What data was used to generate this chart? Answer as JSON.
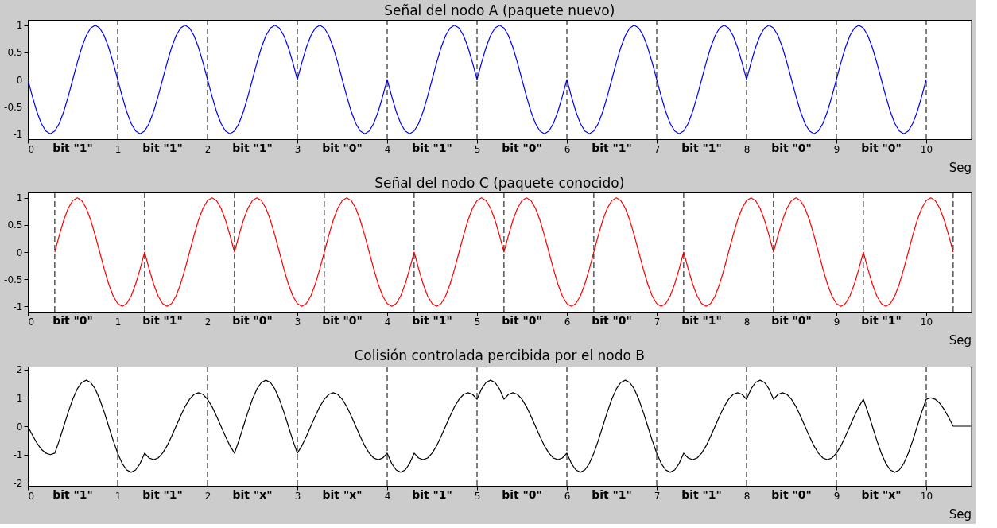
{
  "chart_data": [
    {
      "type": "line",
      "title": "Señal del nodo A (paquete nuevo)",
      "xlabel": "Seg",
      "x": [
        0,
        0.05,
        0.1,
        0.15,
        0.2,
        0.25,
        0.3,
        0.35,
        0.4,
        0.45,
        0.5,
        0.55,
        0.6,
        0.65,
        0.7,
        0.75,
        0.8,
        0.85,
        0.9,
        0.95,
        1,
        1.05,
        1.1,
        1.15,
        1.2,
        1.25,
        1.3,
        1.35,
        1.4,
        1.45,
        1.5,
        1.55,
        1.6,
        1.65,
        1.7,
        1.75,
        1.8,
        1.85,
        1.9,
        1.95,
        2,
        2.05,
        2.1,
        2.15,
        2.2,
        2.25,
        2.3,
        2.35,
        2.4,
        2.45,
        2.5,
        2.55,
        2.6,
        2.65,
        2.7,
        2.75,
        2.8,
        2.85,
        2.9,
        2.95,
        3,
        3.05,
        3.1,
        3.15,
        3.2,
        3.25,
        3.3,
        3.35,
        3.4,
        3.45,
        3.5,
        3.55,
        3.6,
        3.65,
        3.7,
        3.75,
        3.8,
        3.85,
        3.9,
        3.95,
        4,
        4.05,
        4.1,
        4.15,
        4.2,
        4.25,
        4.3,
        4.35,
        4.4,
        4.45,
        4.5,
        4.55,
        4.6,
        4.65,
        4.7,
        4.75,
        4.8,
        4.85,
        4.9,
        4.95,
        5,
        5.05,
        5.1,
        5.15,
        5.2,
        5.25,
        5.3,
        5.35,
        5.4,
        5.45,
        5.5,
        5.55,
        5.6,
        5.65,
        5.7,
        5.75,
        5.8,
        5.85,
        5.9,
        5.95,
        6,
        6.05,
        6.1,
        6.15,
        6.2,
        6.25,
        6.3,
        6.35,
        6.4,
        6.45,
        6.5,
        6.55,
        6.6,
        6.65,
        6.7,
        6.75,
        6.8,
        6.85,
        6.9,
        6.95,
        7,
        7.05,
        7.1,
        7.15,
        7.2,
        7.25,
        7.3,
        7.35,
        7.4,
        7.45,
        7.5,
        7.55,
        7.6,
        7.65,
        7.7,
        7.75,
        7.8,
        7.85,
        7.9,
        7.95,
        8,
        8.05,
        8.1,
        8.15,
        8.2,
        8.25,
        8.3,
        8.35,
        8.4,
        8.45,
        8.5,
        8.55,
        8.6,
        8.65,
        8.7,
        8.75,
        8.8,
        8.85,
        8.9,
        8.95,
        9,
        9.05,
        9.1,
        9.15,
        9.2,
        9.25,
        9.3,
        9.35,
        9.4,
        9.45,
        9.5,
        9.55,
        9.6,
        9.65,
        9.7,
        9.75,
        9.8,
        9.85,
        9.9,
        9.95,
        10
      ],
      "series": [
        {
          "color": "#0000ff",
          "values": [
            0,
            -0.31,
            -0.59,
            -0.81,
            -0.95,
            -1,
            -0.95,
            -0.81,
            -0.59,
            -0.31,
            0,
            0.31,
            0.59,
            0.81,
            0.95,
            1,
            0.95,
            0.81,
            0.59,
            0.31,
            0,
            -0.31,
            -0.59,
            -0.81,
            -0.95,
            -1,
            -0.95,
            -0.81,
            -0.59,
            -0.31,
            0,
            0.31,
            0.59,
            0.81,
            0.95,
            1,
            0.95,
            0.81,
            0.59,
            0.31,
            0,
            -0.31,
            -0.59,
            -0.81,
            -0.95,
            -1,
            -0.95,
            -0.81,
            -0.59,
            -0.31,
            0,
            0.31,
            0.59,
            0.81,
            0.95,
            1,
            0.95,
            0.81,
            0.59,
            0.31,
            0,
            0.31,
            0.59,
            0.81,
            0.95,
            1,
            0.95,
            0.81,
            0.59,
            0.31,
            0,
            -0.31,
            -0.59,
            -0.81,
            -0.95,
            -1,
            -0.95,
            -0.81,
            -0.59,
            -0.31,
            0,
            -0.31,
            -0.59,
            -0.81,
            -0.95,
            -1,
            -0.95,
            -0.81,
            -0.59,
            -0.31,
            0,
            0.31,
            0.59,
            0.81,
            0.95,
            1,
            0.95,
            0.81,
            0.59,
            0.31,
            0,
            0.31,
            0.59,
            0.81,
            0.95,
            1,
            0.95,
            0.81,
            0.59,
            0.31,
            0,
            -0.31,
            -0.59,
            -0.81,
            -0.95,
            -1,
            -0.95,
            -0.81,
            -0.59,
            -0.31,
            0,
            -0.31,
            -0.59,
            -0.81,
            -0.95,
            -1,
            -0.95,
            -0.81,
            -0.59,
            -0.31,
            0,
            0.31,
            0.59,
            0.81,
            0.95,
            1,
            0.95,
            0.81,
            0.59,
            0.31,
            0,
            -0.31,
            -0.59,
            -0.81,
            -0.95,
            -1,
            -0.95,
            -0.81,
            -0.59,
            -0.31,
            0,
            0.31,
            0.59,
            0.81,
            0.95,
            1,
            0.95,
            0.81,
            0.59,
            0.31,
            0,
            0.31,
            0.59,
            0.81,
            0.95,
            1,
            0.95,
            0.81,
            0.59,
            0.31,
            0,
            -0.31,
            -0.59,
            -0.81,
            -0.95,
            -1,
            -0.95,
            -0.81,
            -0.59,
            -0.31,
            0,
            0.31,
            0.59,
            0.81,
            0.95,
            1,
            0.95,
            0.81,
            0.59,
            0.31,
            0,
            -0.31,
            -0.59,
            -0.81,
            -0.95,
            -1,
            -0.95,
            -0.81,
            -0.59,
            -0.31,
            0
          ]
        }
      ],
      "xlim": [
        0,
        10.5
      ],
      "ylim": [
        -1.1,
        1.1
      ],
      "xticks": [
        0,
        1,
        2,
        3,
        4,
        5,
        6,
        7,
        8,
        9,
        10
      ],
      "yticks": [
        -1,
        -0.5,
        0,
        0.5,
        1
      ],
      "ref_lines": [
        {
          "axis": "x",
          "value": 1,
          "color": "#000000",
          "line_style": "dashed"
        },
        {
          "axis": "x",
          "value": 2,
          "color": "#000000",
          "line_style": "dashed"
        },
        {
          "axis": "x",
          "value": 3,
          "color": "#000000",
          "line_style": "dashed"
        },
        {
          "axis": "x",
          "value": 4,
          "color": "#000000",
          "line_style": "dashed"
        },
        {
          "axis": "x",
          "value": 5,
          "color": "#000000",
          "line_style": "dashed"
        },
        {
          "axis": "x",
          "value": 6,
          "color": "#000000",
          "line_style": "dashed"
        },
        {
          "axis": "x",
          "value": 7,
          "color": "#000000",
          "line_style": "dashed"
        },
        {
          "axis": "x",
          "value": 8,
          "color": "#000000",
          "line_style": "dashed"
        },
        {
          "axis": "x",
          "value": 9,
          "color": "#000000",
          "line_style": "dashed"
        },
        {
          "axis": "x",
          "value": 10,
          "color": "#000000",
          "line_style": "dashed"
        }
      ],
      "annotations": [
        "bit \"1\"",
        "bit \"1\"",
        "bit \"1\"",
        "bit \"0\"",
        "bit \"1\"",
        "bit \"0\"",
        "bit \"1\"",
        "bit \"1\"",
        "bit \"0\"",
        "bit \"0\""
      ]
    },
    {
      "type": "line",
      "title": "Señal del nodo C (paquete conocido)",
      "xlabel": "Seg",
      "x": [
        0.3,
        0.35,
        0.4,
        0.45,
        0.5,
        0.55,
        0.6,
        0.65,
        0.7,
        0.75,
        0.8,
        0.85,
        0.9,
        0.95,
        1,
        1.05,
        1.1,
        1.15,
        1.2,
        1.25,
        1.3,
        1.35,
        1.4,
        1.45,
        1.5,
        1.55,
        1.6,
        1.65,
        1.7,
        1.75,
        1.8,
        1.85,
        1.9,
        1.95,
        2,
        2.05,
        2.1,
        2.15,
        2.2,
        2.25,
        2.3,
        2.35,
        2.4,
        2.45,
        2.5,
        2.55,
        2.6,
        2.65,
        2.7,
        2.75,
        2.8,
        2.85,
        2.9,
        2.95,
        3,
        3.05,
        3.1,
        3.15,
        3.2,
        3.25,
        3.3,
        3.35,
        3.4,
        3.45,
        3.5,
        3.55,
        3.6,
        3.65,
        3.7,
        3.75,
        3.8,
        3.85,
        3.9,
        3.95,
        4,
        4.05,
        4.1,
        4.15,
        4.2,
        4.25,
        4.3,
        4.35,
        4.4,
        4.45,
        4.5,
        4.55,
        4.6,
        4.65,
        4.7,
        4.75,
        4.8,
        4.85,
        4.9,
        4.95,
        5,
        5.05,
        5.1,
        5.15,
        5.2,
        5.25,
        5.3,
        5.35,
        5.4,
        5.45,
        5.5,
        5.55,
        5.6,
        5.65,
        5.7,
        5.75,
        5.8,
        5.85,
        5.9,
        5.95,
        6,
        6.05,
        6.1,
        6.15,
        6.2,
        6.25,
        6.3,
        6.35,
        6.4,
        6.45,
        6.5,
        6.55,
        6.6,
        6.65,
        6.7,
        6.75,
        6.8,
        6.85,
        6.9,
        6.95,
        7,
        7.05,
        7.1,
        7.15,
        7.2,
        7.25,
        7.3,
        7.35,
        7.4,
        7.45,
        7.5,
        7.55,
        7.6,
        7.65,
        7.7,
        7.75,
        7.8,
        7.85,
        7.9,
        7.95,
        8,
        8.05,
        8.1,
        8.15,
        8.2,
        8.25,
        8.3,
        8.35,
        8.4,
        8.45,
        8.5,
        8.55,
        8.6,
        8.65,
        8.7,
        8.75,
        8.8,
        8.85,
        8.9,
        8.95,
        9,
        9.05,
        9.1,
        9.15,
        9.2,
        9.25,
        9.3,
        9.35,
        9.4,
        9.45,
        9.5,
        9.55,
        9.6,
        9.65,
        9.7,
        9.75,
        9.8,
        9.85,
        9.9,
        9.95,
        10,
        10.05,
        10.1,
        10.15,
        10.2,
        10.25,
        10.3
      ],
      "series": [
        {
          "color": "#ff0000",
          "values": [
            0,
            0.31,
            0.59,
            0.81,
            0.95,
            1,
            0.95,
            0.81,
            0.59,
            0.31,
            0,
            -0.31,
            -0.59,
            -0.81,
            -0.95,
            -1,
            -0.95,
            -0.81,
            -0.59,
            -0.31,
            0,
            -0.31,
            -0.59,
            -0.81,
            -0.95,
            -1,
            -0.95,
            -0.81,
            -0.59,
            -0.31,
            0,
            0.31,
            0.59,
            0.81,
            0.95,
            1,
            0.95,
            0.81,
            0.59,
            0.31,
            0,
            0.31,
            0.59,
            0.81,
            0.95,
            1,
            0.95,
            0.81,
            0.59,
            0.31,
            0,
            -0.31,
            -0.59,
            -0.81,
            -0.95,
            -1,
            -0.95,
            -0.81,
            -0.59,
            -0.31,
            0,
            0.31,
            0.59,
            0.81,
            0.95,
            1,
            0.95,
            0.81,
            0.59,
            0.31,
            0,
            -0.31,
            -0.59,
            -0.81,
            -0.95,
            -1,
            -0.95,
            -0.81,
            -0.59,
            -0.31,
            0,
            -0.31,
            -0.59,
            -0.81,
            -0.95,
            -1,
            -0.95,
            -0.81,
            -0.59,
            -0.31,
            0,
            0.31,
            0.59,
            0.81,
            0.95,
            1,
            0.95,
            0.81,
            0.59,
            0.31,
            0,
            0.31,
            0.59,
            0.81,
            0.95,
            1,
            0.95,
            0.81,
            0.59,
            0.31,
            0,
            -0.31,
            -0.59,
            -0.81,
            -0.95,
            -1,
            -0.95,
            -0.81,
            -0.59,
            -0.31,
            0,
            0.31,
            0.59,
            0.81,
            0.95,
            1,
            0.95,
            0.81,
            0.59,
            0.31,
            0,
            -0.31,
            -0.59,
            -0.81,
            -0.95,
            -1,
            -0.95,
            -0.81,
            -0.59,
            -0.31,
            0,
            -0.31,
            -0.59,
            -0.81,
            -0.95,
            -1,
            -0.95,
            -0.81,
            -0.59,
            -0.31,
            0,
            0.31,
            0.59,
            0.81,
            0.95,
            1,
            0.95,
            0.81,
            0.59,
            0.31,
            0,
            0.31,
            0.59,
            0.81,
            0.95,
            1,
            0.95,
            0.81,
            0.59,
            0.31,
            0,
            -0.31,
            -0.59,
            -0.81,
            -0.95,
            -1,
            -0.95,
            -0.81,
            -0.59,
            -0.31,
            0,
            -0.31,
            -0.59,
            -0.81,
            -0.95,
            -1,
            -0.95,
            -0.81,
            -0.59,
            -0.31,
            0,
            0.31,
            0.59,
            0.81,
            0.95,
            1,
            0.95,
            0.81,
            0.59,
            0.31,
            0
          ]
        }
      ],
      "xlim": [
        0,
        10.5
      ],
      "ylim": [
        -1.1,
        1.1
      ],
      "xticks": [
        0,
        1,
        2,
        3,
        4,
        5,
        6,
        7,
        8,
        9,
        10
      ],
      "yticks": [
        -1,
        -0.5,
        0,
        0.5,
        1
      ],
      "ref_lines": [
        {
          "axis": "x",
          "value": 0.3,
          "color": "#000000",
          "line_style": "dashed"
        },
        {
          "axis": "x",
          "value": 1.3,
          "color": "#000000",
          "line_style": "dashed"
        },
        {
          "axis": "x",
          "value": 2.3,
          "color": "#000000",
          "line_style": "dashed"
        },
        {
          "axis": "x",
          "value": 3.3,
          "color": "#000000",
          "line_style": "dashed"
        },
        {
          "axis": "x",
          "value": 4.3,
          "color": "#000000",
          "line_style": "dashed"
        },
        {
          "axis": "x",
          "value": 5.3,
          "color": "#000000",
          "line_style": "dashed"
        },
        {
          "axis": "x",
          "value": 6.3,
          "color": "#000000",
          "line_style": "dashed"
        },
        {
          "axis": "x",
          "value": 7.3,
          "color": "#000000",
          "line_style": "dashed"
        },
        {
          "axis": "x",
          "value": 8.3,
          "color": "#000000",
          "line_style": "dashed"
        },
        {
          "axis": "x",
          "value": 9.3,
          "color": "#000000",
          "line_style": "dashed"
        },
        {
          "axis": "x",
          "value": 10.3,
          "color": "#000000",
          "line_style": "dashed"
        }
      ],
      "annotations": [
        "bit \"0\"",
        "bit \"1\"",
        "bit \"0\"",
        "bit \"0\"",
        "bit \"1\"",
        "bit \"0\"",
        "bit \"0\"",
        "bit \"1\"",
        "bit \"0\"",
        "bit \"1\""
      ]
    },
    {
      "type": "line",
      "title": "Colisión controlada percibida por el nodo B",
      "xlabel": "Seg",
      "x": [
        0,
        0.05,
        0.1,
        0.15,
        0.2,
        0.25,
        0.3,
        0.35,
        0.4,
        0.45,
        0.5,
        0.55,
        0.6,
        0.65,
        0.7,
        0.75,
        0.8,
        0.85,
        0.9,
        0.95,
        1,
        1.05,
        1.1,
        1.15,
        1.2,
        1.25,
        1.3,
        1.35,
        1.4,
        1.45,
        1.5,
        1.55,
        1.6,
        1.65,
        1.7,
        1.75,
        1.8,
        1.85,
        1.9,
        1.95,
        2,
        2.05,
        2.1,
        2.15,
        2.2,
        2.25,
        2.3,
        2.35,
        2.4,
        2.45,
        2.5,
        2.55,
        2.6,
        2.65,
        2.7,
        2.75,
        2.8,
        2.85,
        2.9,
        2.95,
        3,
        3.05,
        3.1,
        3.15,
        3.2,
        3.25,
        3.3,
        3.35,
        3.4,
        3.45,
        3.5,
        3.55,
        3.6,
        3.65,
        3.7,
        3.75,
        3.8,
        3.85,
        3.9,
        3.95,
        4,
        4.05,
        4.1,
        4.15,
        4.2,
        4.25,
        4.3,
        4.35,
        4.4,
        4.45,
        4.5,
        4.55,
        4.6,
        4.65,
        4.7,
        4.75,
        4.8,
        4.85,
        4.9,
        4.95,
        5,
        5.05,
        5.1,
        5.15,
        5.2,
        5.25,
        5.3,
        5.35,
        5.4,
        5.45,
        5.5,
        5.55,
        5.6,
        5.65,
        5.7,
        5.75,
        5.8,
        5.85,
        5.9,
        5.95,
        6,
        6.05,
        6.1,
        6.15,
        6.2,
        6.25,
        6.3,
        6.35,
        6.4,
        6.45,
        6.5,
        6.55,
        6.6,
        6.65,
        6.7,
        6.75,
        6.8,
        6.85,
        6.9,
        6.95,
        7,
        7.05,
        7.1,
        7.15,
        7.2,
        7.25,
        7.3,
        7.35,
        7.4,
        7.45,
        7.5,
        7.55,
        7.6,
        7.65,
        7.7,
        7.75,
        7.8,
        7.85,
        7.9,
        7.95,
        8,
        8.05,
        8.1,
        8.15,
        8.2,
        8.25,
        8.3,
        8.35,
        8.4,
        8.45,
        8.5,
        8.55,
        8.6,
        8.65,
        8.7,
        8.75,
        8.8,
        8.85,
        8.9,
        8.95,
        9,
        9.05,
        9.1,
        9.15,
        9.2,
        9.25,
        9.3,
        9.35,
        9.4,
        9.45,
        9.5,
        9.55,
        9.6,
        9.65,
        9.7,
        9.75,
        9.8,
        9.85,
        9.9,
        9.95,
        10,
        10.05,
        10.1,
        10.15,
        10.2,
        10.25,
        10.3,
        10.35,
        10.4,
        10.45,
        10.5
      ],
      "series": [
        {
          "color": "#000000",
          "values": [
            0,
            -0.31,
            -0.59,
            -0.81,
            -0.95,
            -1,
            -0.95,
            -0.5,
            0,
            0.5,
            0.95,
            1.31,
            1.54,
            1.62,
            1.54,
            1.31,
            0.95,
            0.5,
            0,
            -0.5,
            -0.95,
            -1.31,
            -1.54,
            -1.62,
            -1.54,
            -1.31,
            -0.95,
            -1.12,
            -1.18,
            -1.12,
            -0.95,
            -0.69,
            -0.36,
            0,
            0.36,
            0.69,
            0.95,
            1.12,
            1.18,
            1.12,
            0.95,
            0.69,
            0.36,
            0,
            -0.36,
            -0.69,
            -0.95,
            -0.5,
            0,
            0.5,
            0.95,
            1.31,
            1.54,
            1.62,
            1.54,
            1.31,
            0.95,
            0.5,
            0,
            -0.5,
            -0.95,
            -0.69,
            -0.36,
            0,
            0.36,
            0.69,
            0.95,
            1.12,
            1.18,
            1.12,
            0.95,
            0.69,
            0.36,
            0,
            -0.36,
            -0.69,
            -0.95,
            -1.12,
            -1.18,
            -1.12,
            -0.95,
            -1.31,
            -1.54,
            -1.62,
            -1.54,
            -1.31,
            -0.95,
            -1.12,
            -1.18,
            -1.12,
            -0.95,
            -0.69,
            -0.36,
            0,
            0.36,
            0.69,
            0.95,
            1.12,
            1.18,
            1.12,
            0.95,
            1.31,
            1.54,
            1.62,
            1.54,
            1.31,
            0.95,
            1.12,
            1.18,
            1.12,
            0.95,
            0.69,
            0.36,
            0,
            -0.36,
            -0.69,
            -0.95,
            -1.12,
            -1.18,
            -1.12,
            -0.95,
            -1.31,
            -1.54,
            -1.62,
            -1.54,
            -1.31,
            -0.95,
            -0.5,
            0,
            0.5,
            0.95,
            1.31,
            1.54,
            1.62,
            1.54,
            1.31,
            0.95,
            0.5,
            0,
            -0.5,
            -0.95,
            -1.31,
            -1.54,
            -1.62,
            -1.54,
            -1.31,
            -0.95,
            -1.12,
            -1.18,
            -1.12,
            -0.95,
            -0.69,
            -0.36,
            0,
            0.36,
            0.69,
            0.95,
            1.12,
            1.18,
            1.12,
            0.95,
            1.31,
            1.54,
            1.62,
            1.54,
            1.31,
            0.95,
            1.12,
            1.18,
            1.12,
            0.95,
            0.69,
            0.36,
            0,
            -0.36,
            -0.69,
            -0.95,
            -1.12,
            -1.18,
            -1.12,
            -0.95,
            -0.69,
            -0.36,
            0,
            0.36,
            0.69,
            0.95,
            0.5,
            0,
            -0.5,
            -0.95,
            -1.31,
            -1.54,
            -1.62,
            -1.54,
            -1.31,
            -0.95,
            -0.5,
            0,
            0.5,
            0.95,
            1,
            0.95,
            0.81,
            0.59,
            0.31,
            0,
            0,
            0,
            0,
            0
          ]
        }
      ],
      "xlim": [
        0,
        10.5
      ],
      "ylim": [
        -2.1,
        2.1
      ],
      "xticks": [
        0,
        1,
        2,
        3,
        4,
        5,
        6,
        7,
        8,
        9,
        10
      ],
      "yticks": [
        -2,
        -1,
        0,
        1,
        2
      ],
      "ref_lines": [
        {
          "axis": "x",
          "value": 1,
          "color": "#000000",
          "line_style": "dashed"
        },
        {
          "axis": "x",
          "value": 2,
          "color": "#000000",
          "line_style": "dashed"
        },
        {
          "axis": "x",
          "value": 3,
          "color": "#000000",
          "line_style": "dashed"
        },
        {
          "axis": "x",
          "value": 4,
          "color": "#000000",
          "line_style": "dashed"
        },
        {
          "axis": "x",
          "value": 5,
          "color": "#000000",
          "line_style": "dashed"
        },
        {
          "axis": "x",
          "value": 6,
          "color": "#000000",
          "line_style": "dashed"
        },
        {
          "axis": "x",
          "value": 7,
          "color": "#000000",
          "line_style": "dashed"
        },
        {
          "axis": "x",
          "value": 8,
          "color": "#000000",
          "line_style": "dashed"
        },
        {
          "axis": "x",
          "value": 9,
          "color": "#000000",
          "line_style": "dashed"
        },
        {
          "axis": "x",
          "value": 10,
          "color": "#000000",
          "line_style": "dashed"
        }
      ],
      "annotations": [
        "bit \"1\"",
        "bit \"1\"",
        "bit \"x\"",
        "bit \"x\"",
        "bit \"1\"",
        "bit \"0\"",
        "bit \"1\"",
        "bit \"1\"",
        "bit \"0\"",
        "bit \"x\""
      ]
    }
  ]
}
